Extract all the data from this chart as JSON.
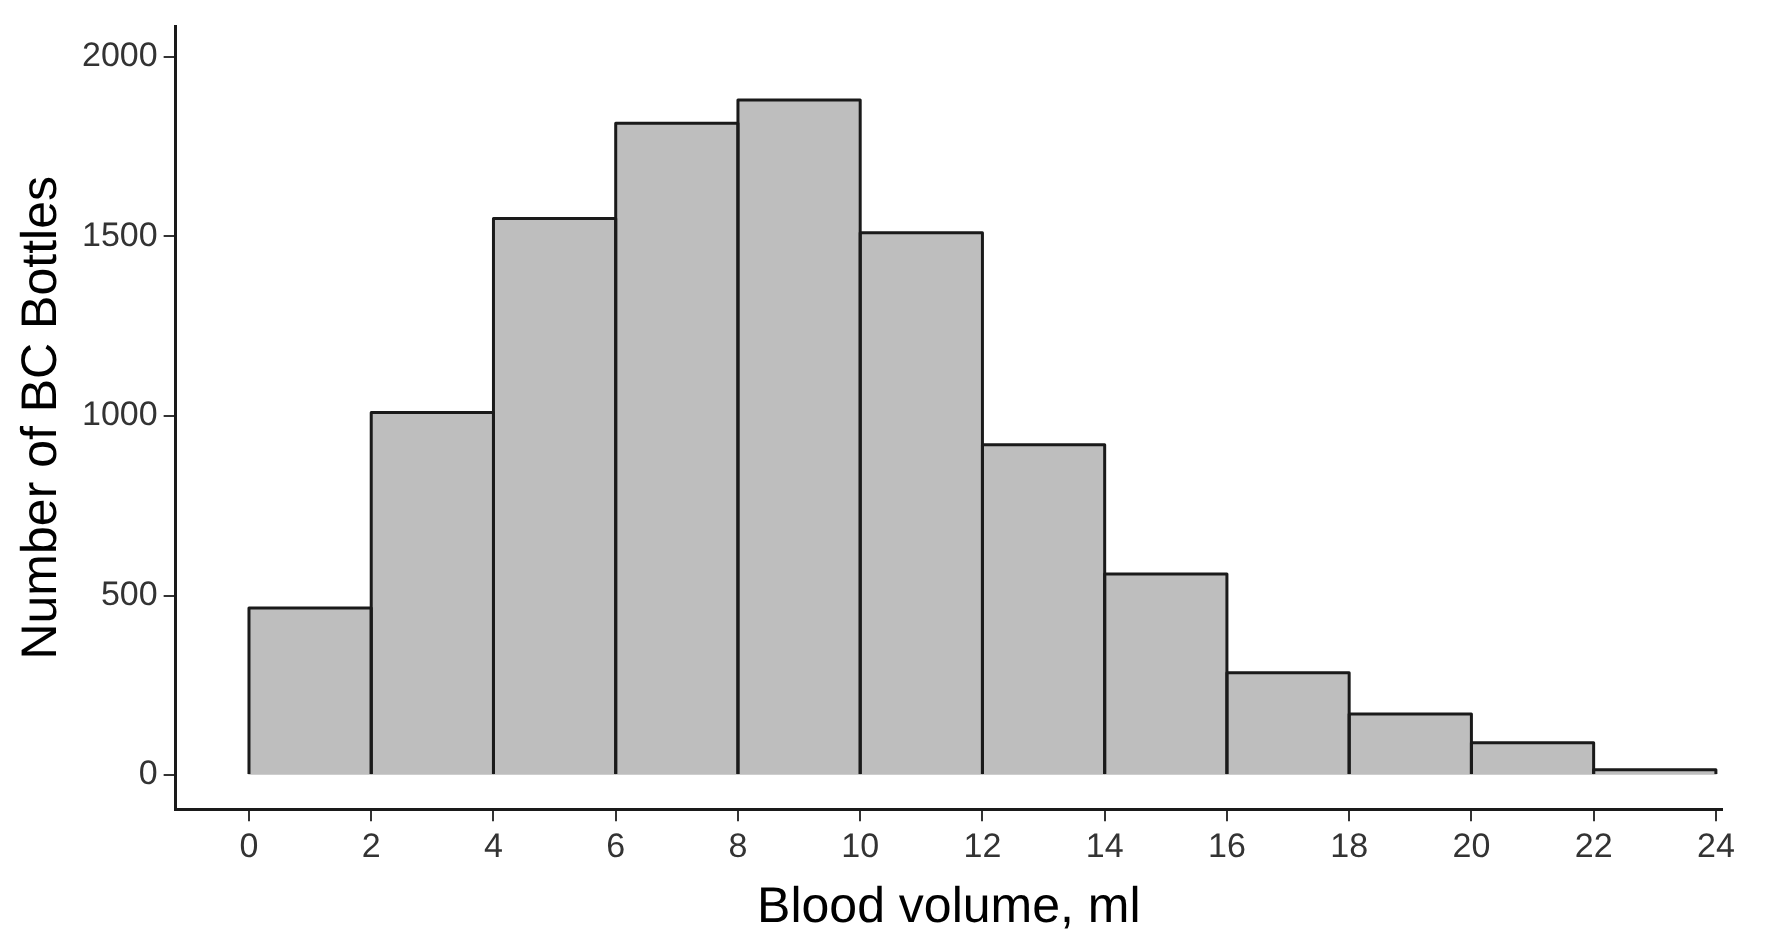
{
  "chart_data": {
    "type": "histogram",
    "xlabel": "Blood volume, ml",
    "ylabel": "Number of BC Bottles",
    "bins": [
      0,
      2,
      4,
      6,
      8,
      10,
      12,
      14,
      16,
      18,
      20,
      22,
      24
    ],
    "values": [
      465,
      1010,
      1550,
      1815,
      1880,
      1510,
      920,
      560,
      285,
      170,
      90,
      15
    ],
    "color": "#bebebe",
    "xlim": [
      -1.2,
      24.1
    ],
    "ylim": [
      -95,
      2085
    ],
    "xticks": [
      0,
      2,
      4,
      6,
      8,
      10,
      12,
      14,
      16,
      18,
      20,
      22,
      24
    ],
    "yticks": [
      0,
      500,
      1000,
      1500,
      2000
    ],
    "grid": false,
    "legend": false
  }
}
